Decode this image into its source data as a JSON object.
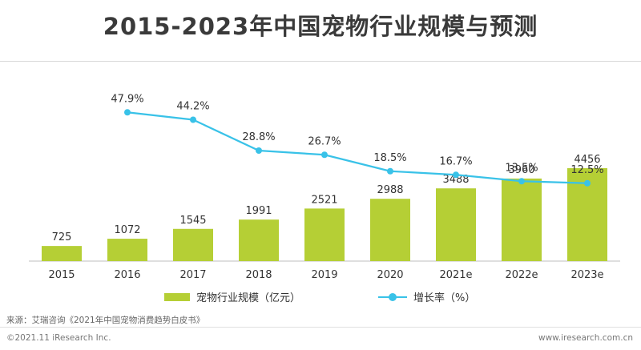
{
  "chart_data": {
    "type": "bar+line",
    "title": "2015-2023年中国宠物行业规模与预测",
    "categories": [
      "2015",
      "2016",
      "2017",
      "2018",
      "2019",
      "2020",
      "2021e",
      "2022e",
      "2023e"
    ],
    "series": [
      {
        "name": "宠物行业规模（亿元）",
        "type": "bar",
        "values": [
          725,
          1072,
          1545,
          1991,
          2521,
          2988,
          3488,
          3960,
          4456
        ]
      },
      {
        "name": "增长率（%）",
        "type": "line",
        "values": [
          null,
          47.9,
          44.2,
          28.8,
          26.7,
          18.5,
          16.7,
          13.5,
          12.5
        ],
        "labels": [
          null,
          "47.9%",
          "44.2%",
          "28.8%",
          "26.7%",
          "18.5%",
          "16.7%",
          "13.5%",
          "12.5%"
        ]
      }
    ],
    "bar_ylim": [
      0,
      5000
    ],
    "line_ylim": [
      0,
      50
    ],
    "legend_position": "bottom",
    "grid": false
  },
  "colors": {
    "bar": "#b5cf35",
    "line": "#39c2e8",
    "axis": "#bfbfbf",
    "label": "#333333"
  },
  "footer": {
    "source": "来源：艾瑞咨询《2021年中国宠物消费趋势白皮书》",
    "copyright": "©2021.11 iResearch Inc.",
    "website": "www.iresearch.com.cn"
  }
}
